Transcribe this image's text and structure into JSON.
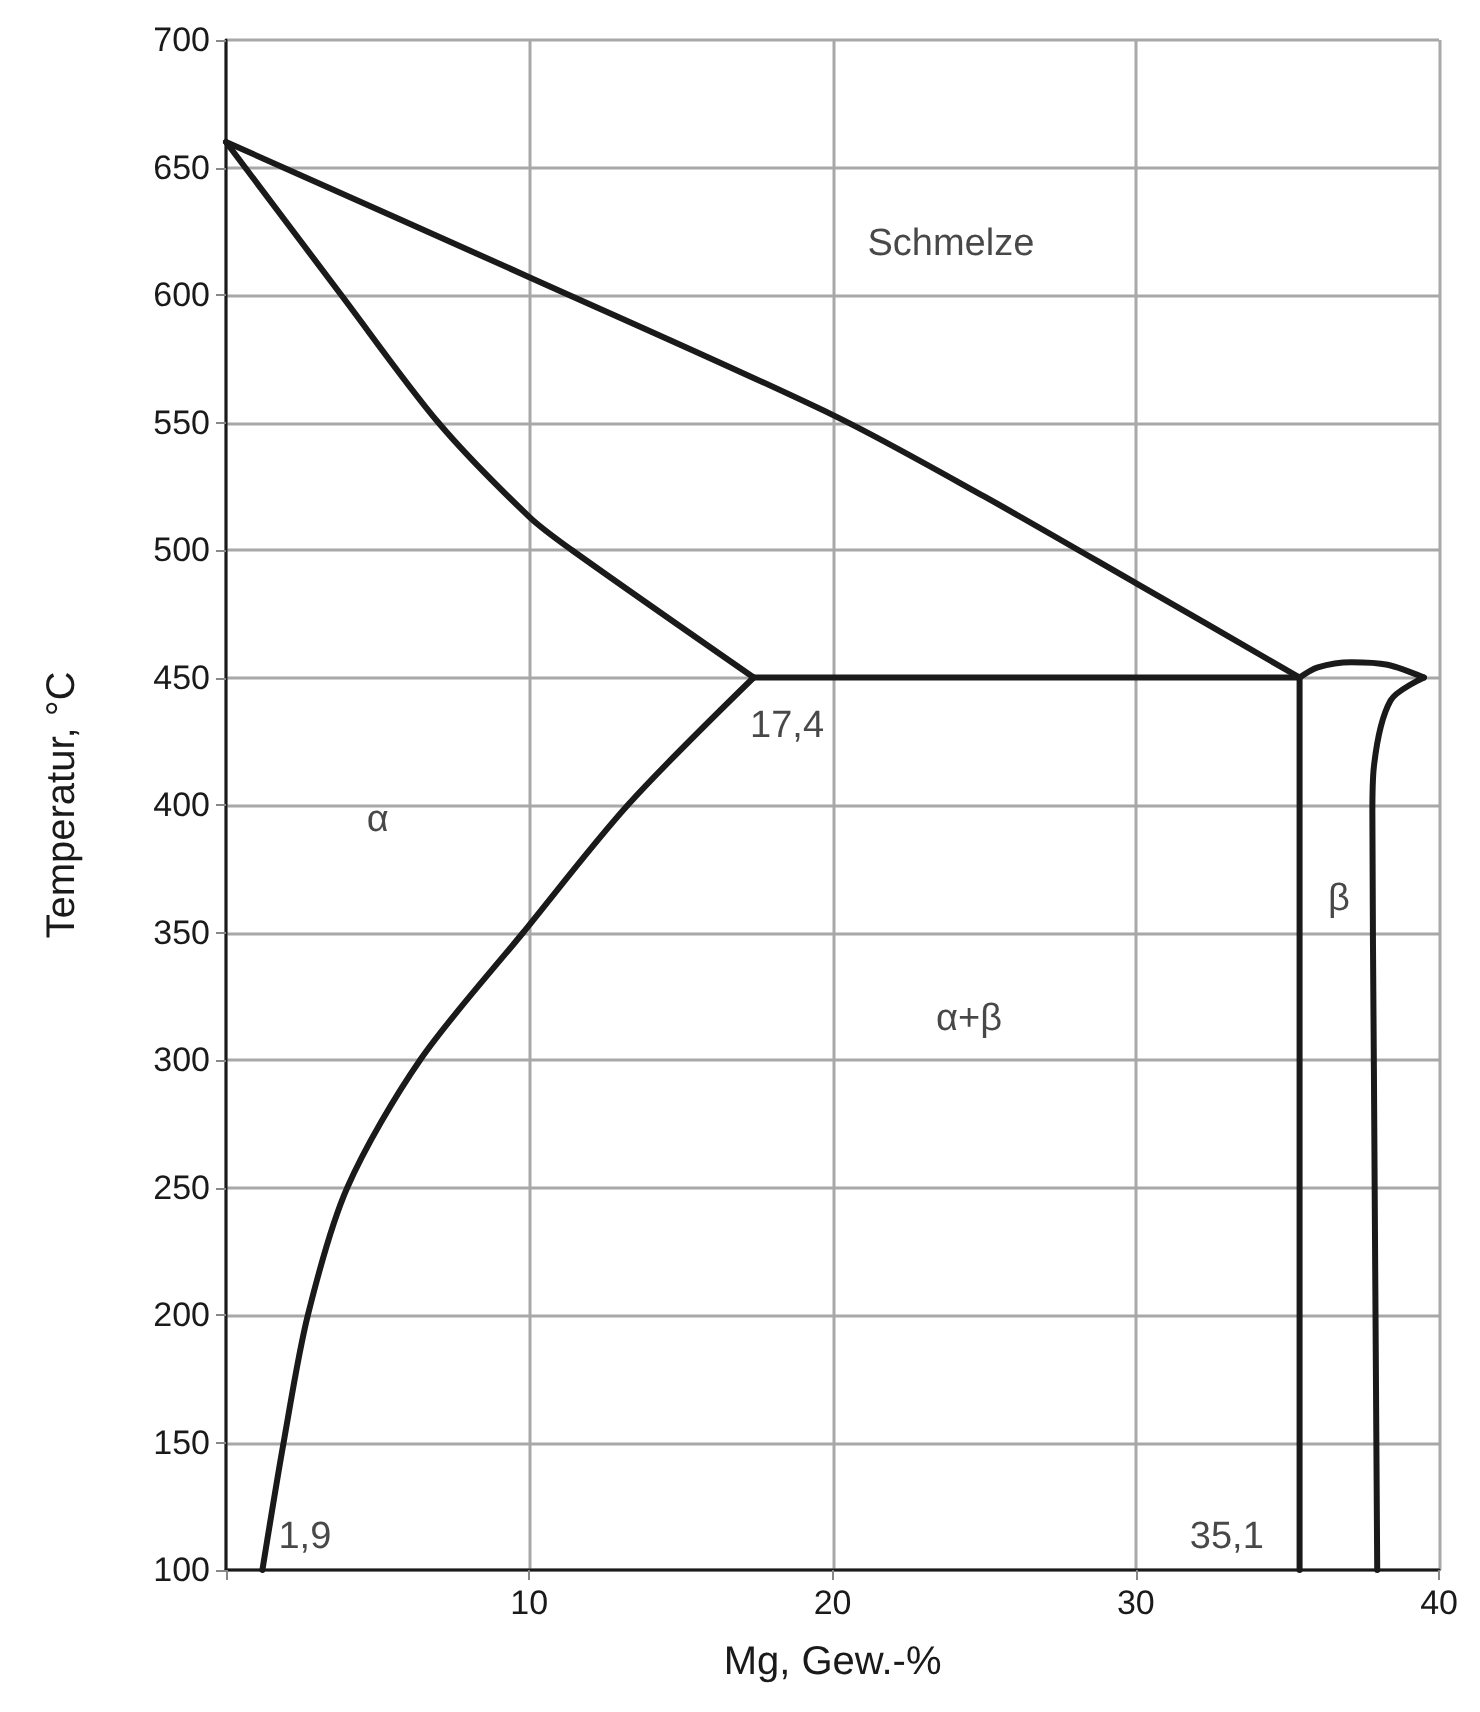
{
  "chart_data": {
    "type": "line",
    "xlabel": "Mg, Gew.-%",
    "ylabel": "Temperatur, °C",
    "xlim": [
      0,
      40
    ],
    "xticks": [
      {
        "value": 0,
        "label": null
      },
      10,
      20,
      30,
      40
    ],
    "ylim": [
      100,
      700
    ],
    "yticks": [
      100,
      150,
      200,
      250,
      300,
      350,
      400,
      450,
      500,
      550,
      600,
      650,
      700
    ],
    "grid": true,
    "marker": "none",
    "line_style": "solid",
    "series": [
      {
        "color": "#1a1a1a",
        "x": [
          0,
          10,
          20,
          25,
          30,
          35.4
        ],
        "values": [
          660,
          607,
          553,
          521,
          487,
          450
        ]
      },
      {
        "color": "#1a1a1a",
        "x": [
          0,
          3.8,
          7.0,
          10,
          11.4,
          17.4
        ],
        "values": [
          660,
          600,
          550,
          513,
          500,
          450
        ]
      },
      {
        "color": "#1a1a1a",
        "x": [
          17.4,
          13.25,
          9.8,
          6.4,
          4.0,
          2.7,
          1.9,
          1.2
        ],
        "values": [
          450,
          400,
          350,
          300,
          250,
          200,
          150,
          100
        ]
      },
      {
        "color": "#1a1a1a",
        "x": [
          17.4,
          35.4
        ],
        "values": [
          450,
          450
        ]
      },
      {
        "color": "#1a1a1a",
        "x": [
          35.4,
          35.4
        ],
        "values": [
          450,
          100
        ]
      },
      {
        "color": "#1a1a1a",
        "x": [
          35.4,
          36.0,
          37.1,
          38.3,
          39.5
        ],
        "values": [
          450,
          454,
          456,
          455,
          450
        ]
      },
      {
        "color": "#1a1a1a",
        "x": [
          39.5,
          38.4,
          37.85,
          37.8,
          37.85,
          37.96
        ],
        "values": [
          450,
          441,
          415,
          397,
          297,
          100
        ]
      }
    ],
    "annotations": [
      "Schmelze",
      "α",
      "α+β",
      "β",
      "17,4",
      "1,9",
      "35,1"
    ]
  }
}
